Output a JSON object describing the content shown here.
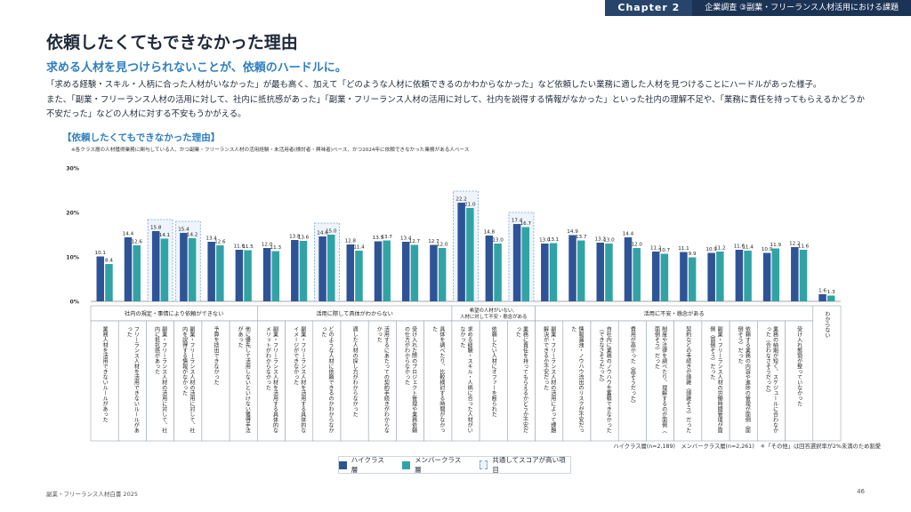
{
  "header": {
    "chapter": "Chapter 2",
    "section": "企業調査 ③副業・フリーランス人材活用における課題"
  },
  "title": "依頼したくてもできなかった理由",
  "subtitle": "求める人材を見つけられないことが、依頼のハードルに。",
  "description": [
    "「求める経験・スキル・人柄に合った人材がいなかった」が最も高く、加えて「どのような人材に依頼できるのかわからなかった」など依頼したい業務に適した人材を見つけることにハードルがあった様子。",
    "また、「副業・フリーランス人材の活用に対して、社内に抵抗感があった」「副業・フリーランス人材の活用に対して、社内を説得する情報がなかった」といった社内の理解不足や、「業務に責任を持ってもらえるかどうか",
    "不安だった」などの人材に対する不安もうかがえる。"
  ],
  "chart_title": "【依頼したくてもできなかった理由】",
  "chart_note": "※各クラス層の人材獲得業務に関与している人、かつ副業・フリーランス人材の活用経験・未活用者(検討者・興味者)ベース、かつ2024年に依頼できなかった業務がある人ベース",
  "footer_note": "ハイクラス層(n=2,189)　メンバークラス層(n=2,261)　＊「その他」は回答選択率が2%未満のため割愛",
  "legend": {
    "high": "ハイクラス層",
    "member": "メンバークラス層",
    "common": "共通してスコアが高い項目"
  },
  "footer_left": "副業・フリーランス人材白書 2025",
  "page_number": "46",
  "colors": {
    "high": "#2f5496",
    "member": "#32a3a5",
    "accent": "#2f7fc1",
    "navy": "#27456b"
  },
  "chart_data": {
    "type": "bar",
    "ylim": [
      0,
      30
    ],
    "yticks": [
      "0%",
      "10%",
      "20%",
      "30%"
    ],
    "series": [
      {
        "name": "ハイクラス層",
        "values": [
          10.1,
          14.4,
          15.8,
          15.4,
          13.4,
          11.6,
          12.0,
          13.8,
          14.6,
          12.8,
          13.5,
          13.4,
          12.7,
          22.2,
          14.8,
          17.4,
          13.0,
          14.9,
          13.2,
          14.4,
          11.2,
          11.1,
          10.9,
          11.6,
          10.9,
          12.2,
          1.6
        ]
      },
      {
        "name": "メンバークラス層",
        "values": [
          8.4,
          12.6,
          14.1,
          14.2,
          12.6,
          11.5,
          11.3,
          13.6,
          15.0,
          11.4,
          13.7,
          12.7,
          12.0,
          21.0,
          13.0,
          16.7,
          13.1,
          13.7,
          13.0,
          12.0,
          10.7,
          9.9,
          11.2,
          11.4,
          11.9,
          11.6,
          1.3
        ]
      }
    ],
    "highlighted": [
      2,
      3,
      8,
      13,
      15
    ],
    "categories": [
      "業務人材を活用できないルールがあった",
      "フリーランス人材を活用できないルールがあった",
      "副業・フリーランス人材の活用に対して、社内に抵抗感があった",
      "副業・フリーランス人材の活用に対して、社内を説得する情報がなかった",
      "予算を捻出できなかった",
      "他に優先して活用しないといけない獲得手法があった",
      "副業・フリーランス人材を活用する具体的なメリットがわからなかった",
      "副業・フリーランス人材を活用する具体的なイメージができなかった",
      "どのような人材に依頼できるのかわからなかった",
      "適した人材の探し方がわからなかった",
      "活用するにあたっての契約手続きがわからなかった",
      "受け入れた際のプロジェクト管理や業務依頼の仕方がわからなかった",
      "具体を調べたり、比較検討する時間がなかった",
      "求める経験・スキル・人柄に合った人材がいなかった",
      "依頼したい人材にオファーを断られた",
      "業務に責任を持ってもらえるかどうか不安だった",
      "副業・フリーランス人材の活用によって課題解決ができるか不安だった",
      "情報漏洩・ノウハウ流出のリスクが不安だった",
      "自社内に業務のノウハウを蓄積できなかった（できなさそうだった）",
      "費用が高かった（高そうだった）",
      "制度や法律を調べたり、理解するのが面倒（面倒そう）だった",
      "契約などの手続きが煩雑（煩雑そう）だった",
      "副業・フリーランス人材の労働時間管理が面倒（面倒そう）だった",
      "依頼する業務の内容や進捗の管理が面倒（面倒そう）だった",
      "業務の納期が短く、スケジュールに合わなかった（合わなさそうだった）",
      "受け入れ態勢が整っていなかった",
      "わからない"
    ],
    "groups": [
      {
        "label": "社内の規定・事情により依頼ができない",
        "start": 0,
        "end": 5
      },
      {
        "label": "活用に際して具体がわからない",
        "start": 6,
        "end": 12
      },
      {
        "label": "希望の人材がいない、人材に対して不安・懸念がある",
        "label_lines": [
          "希望の人材がいない、",
          "人材に対して不安・懸念がある"
        ],
        "start": 13,
        "end": 15
      },
      {
        "label": "活用に不安・懸念がある",
        "start": 16,
        "end": 25
      },
      {
        "label": "",
        "start": 26,
        "end": 26
      }
    ]
  }
}
